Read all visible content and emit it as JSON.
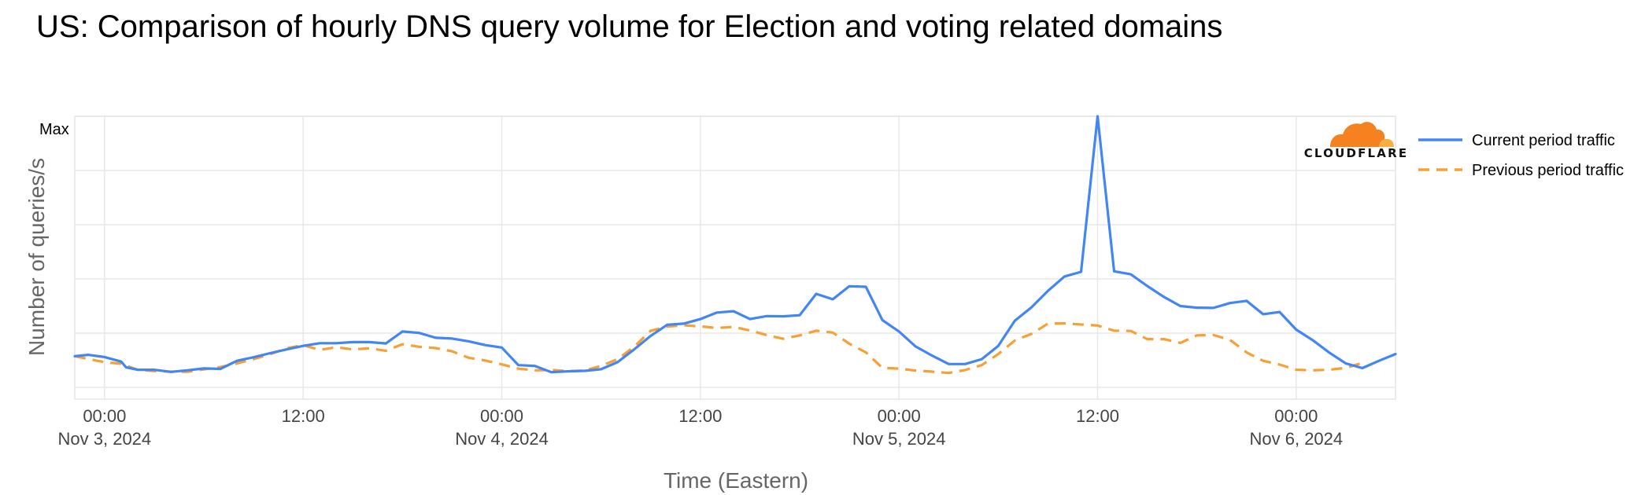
{
  "title": "US: Comparison of hourly DNS query volume for Election and voting related domains",
  "logo": {
    "text": "CLOUDFLARE",
    "icon": "cloudflare-cloud-icon",
    "colors": [
      "#f6821f",
      "#fbad41"
    ]
  },
  "chart_data": {
    "type": "line",
    "title": "US: Comparison of hourly DNS query volume for Election and voting related domains",
    "xlabel": "Time (Eastern)",
    "ylabel": "Number of queries/s",
    "y_max_label": "Max",
    "x_unit": "hours from Nov 3, 2024 00:00 (Eastern)",
    "x_ticks": [
      {
        "x": 0,
        "time": "00:00",
        "date": "Nov 3, 2024"
      },
      {
        "x": 12,
        "time": "12:00",
        "date": ""
      },
      {
        "x": 24,
        "time": "00:00",
        "date": "Nov 4, 2024"
      },
      {
        "x": 36,
        "time": "12:00",
        "date": ""
      },
      {
        "x": 48,
        "time": "00:00",
        "date": "Nov 5, 2024"
      },
      {
        "x": 60,
        "time": "12:00",
        "date": ""
      },
      {
        "x": 72,
        "time": "00:00",
        "date": "Nov 6, 2024"
      }
    ],
    "xlim": [
      -1.8,
      78
    ],
    "ylim": [
      0,
      100
    ],
    "grid": true,
    "legend_position": "right",
    "series": [
      {
        "name": "Current period traffic",
        "color": "#4285f4",
        "dash": "solid",
        "points": [
          [
            -1.8,
            11.5
          ],
          [
            -1,
            12
          ],
          [
            0,
            11.2
          ],
          [
            1,
            9.5
          ],
          [
            1.3,
            7.4
          ],
          [
            2,
            6.5
          ],
          [
            3,
            6.5
          ],
          [
            4,
            5.7
          ],
          [
            5,
            6.3
          ],
          [
            6,
            7
          ],
          [
            7,
            6.8
          ],
          [
            8,
            9.8
          ],
          [
            9,
            11.1
          ],
          [
            10,
            12.6
          ],
          [
            11,
            14
          ],
          [
            12,
            15.3
          ],
          [
            13,
            16.3
          ],
          [
            14,
            16.3
          ],
          [
            15,
            16.7
          ],
          [
            16,
            16.7
          ],
          [
            17,
            16.2
          ],
          [
            18,
            20.6
          ],
          [
            19,
            20.1
          ],
          [
            20,
            18.3
          ],
          [
            21,
            18
          ],
          [
            22,
            17
          ],
          [
            23,
            15.6
          ],
          [
            24,
            14.7
          ],
          [
            25,
            8.2
          ],
          [
            26,
            7.9
          ],
          [
            27,
            5.6
          ],
          [
            28,
            5.9
          ],
          [
            29,
            6.1
          ],
          [
            30,
            6.7
          ],
          [
            31,
            9.3
          ],
          [
            32,
            14
          ],
          [
            33,
            19
          ],
          [
            34,
            23.1
          ],
          [
            35,
            23.5
          ],
          [
            36,
            25.2
          ],
          [
            37,
            27.6
          ],
          [
            38,
            28.1
          ],
          [
            39,
            25.2
          ],
          [
            40,
            26.3
          ],
          [
            41,
            26.2
          ],
          [
            42,
            26.6
          ],
          [
            43,
            34.5
          ],
          [
            44,
            32.5
          ],
          [
            45,
            37.3
          ],
          [
            46,
            37.1
          ],
          [
            47,
            24.8
          ],
          [
            48,
            20.6
          ],
          [
            49,
            15.1
          ],
          [
            50,
            11.7
          ],
          [
            51,
            8.6
          ],
          [
            52,
            8.6
          ],
          [
            53,
            10.4
          ],
          [
            54,
            15.3
          ],
          [
            55,
            24.6
          ],
          [
            56,
            29.5
          ],
          [
            57,
            35.6
          ],
          [
            58,
            40.9
          ],
          [
            59,
            42.6
          ],
          [
            60,
            100
          ],
          [
            61,
            42.8
          ],
          [
            62,
            41.7
          ],
          [
            63,
            37.4
          ],
          [
            64,
            33.4
          ],
          [
            65,
            30
          ],
          [
            66,
            29.4
          ],
          [
            67,
            29.3
          ],
          [
            68,
            31.1
          ],
          [
            69,
            31.9
          ],
          [
            70,
            27
          ],
          [
            71,
            27.8
          ],
          [
            72,
            21.3
          ],
          [
            73,
            17.4
          ],
          [
            74,
            12.8
          ],
          [
            75,
            8.8
          ],
          [
            76,
            7.1
          ],
          [
            77,
            9.8
          ],
          [
            78,
            12.3
          ]
        ]
      },
      {
        "name": "Previous period traffic",
        "color": "#f6a035",
        "dash": "dashed",
        "points": [
          [
            -1.8,
            11.5
          ],
          [
            -1,
            10.5
          ],
          [
            0,
            9.3
          ],
          [
            1,
            8.7
          ],
          [
            2,
            6.5
          ],
          [
            3,
            6
          ],
          [
            4,
            5.8
          ],
          [
            5,
            5.7
          ],
          [
            6,
            6.6
          ],
          [
            7,
            7.5
          ],
          [
            8,
            8.8
          ],
          [
            9,
            10.4
          ],
          [
            10,
            12.2
          ],
          [
            11,
            14.4
          ],
          [
            12,
            15.6
          ],
          [
            13,
            13.8
          ],
          [
            14,
            14.8
          ],
          [
            15,
            14
          ],
          [
            16,
            14.4
          ],
          [
            17,
            13.5
          ],
          [
            18,
            15.9
          ],
          [
            19,
            15
          ],
          [
            20,
            14.5
          ],
          [
            21,
            13.3
          ],
          [
            22,
            10.9
          ],
          [
            23,
            9.9
          ],
          [
            24,
            8.5
          ],
          [
            25,
            6.9
          ],
          [
            26,
            6.3
          ],
          [
            27,
            6.4
          ],
          [
            28,
            6
          ],
          [
            29,
            6.2
          ],
          [
            30,
            7.9
          ],
          [
            31,
            10.4
          ],
          [
            32,
            15
          ],
          [
            33,
            20.9
          ],
          [
            34,
            22.4
          ],
          [
            35,
            22.9
          ],
          [
            36,
            22.5
          ],
          [
            37,
            21.9
          ],
          [
            38,
            22.3
          ],
          [
            39,
            21
          ],
          [
            40,
            19.3
          ],
          [
            41,
            17.9
          ],
          [
            42,
            19.2
          ],
          [
            43,
            20.9
          ],
          [
            44,
            20.2
          ],
          [
            45,
            16.1
          ],
          [
            46,
            12.9
          ],
          [
            47,
            7.2
          ],
          [
            48,
            6.9
          ],
          [
            49,
            6.2
          ],
          [
            50,
            5.8
          ],
          [
            51,
            5.3
          ],
          [
            52,
            6.4
          ],
          [
            53,
            8.2
          ],
          [
            54,
            12.3
          ],
          [
            55,
            17.3
          ],
          [
            56,
            19.7
          ],
          [
            57,
            23.5
          ],
          [
            58,
            23.6
          ],
          [
            59,
            23.2
          ],
          [
            60,
            22.8
          ],
          [
            61,
            20.9
          ],
          [
            62,
            20.8
          ],
          [
            63,
            17.8
          ],
          [
            64,
            17.8
          ],
          [
            65,
            16.4
          ],
          [
            66,
            19.2
          ],
          [
            67,
            19.3
          ],
          [
            68,
            17.5
          ],
          [
            69,
            12.9
          ],
          [
            70,
            9.8
          ],
          [
            71,
            8.4
          ],
          [
            72,
            6.5
          ],
          [
            73,
            6.3
          ],
          [
            74,
            6.5
          ],
          [
            75,
            7.2
          ],
          [
            76,
            9
          ]
        ]
      }
    ]
  }
}
